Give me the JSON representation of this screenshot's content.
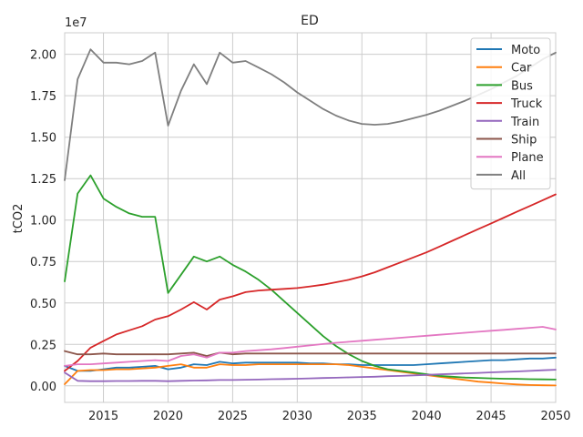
{
  "chart_data": {
    "type": "line",
    "title": "ED",
    "xlabel": "",
    "ylabel": "tCO2",
    "y_offset_label": "1e7",
    "grid": true,
    "legend_position": "top-right",
    "xlim": [
      2012,
      2050
    ],
    "ylim": [
      -0.1,
      2.13
    ],
    "xticks": [
      2015,
      2020,
      2025,
      2030,
      2035,
      2040,
      2045,
      2050
    ],
    "yticks": [
      0.0,
      0.25,
      0.5,
      0.75,
      1.0,
      1.25,
      1.5,
      1.75,
      2.0
    ],
    "ytick_labels": [
      "0.00",
      "0.25",
      "0.50",
      "0.75",
      "1.00",
      "1.25",
      "1.50",
      "1.75",
      "2.00"
    ],
    "x": [
      2012,
      2013,
      2014,
      2015,
      2016,
      2017,
      2018,
      2019,
      2020,
      2021,
      2022,
      2023,
      2024,
      2025,
      2026,
      2027,
      2028,
      2029,
      2030,
      2031,
      2032,
      2033,
      2034,
      2035,
      2036,
      2037,
      2038,
      2039,
      2040,
      2041,
      2042,
      2043,
      2044,
      2045,
      2046,
      2047,
      2048,
      2049,
      2050
    ],
    "series": [
      {
        "name": "Moto",
        "color": "#1f77b4",
        "values": [
          0.12,
          0.09,
          0.09,
          0.1,
          0.11,
          0.11,
          0.115,
          0.12,
          0.1,
          0.11,
          0.13,
          0.125,
          0.145,
          0.135,
          0.14,
          0.14,
          0.14,
          0.14,
          0.14,
          0.135,
          0.135,
          0.13,
          0.13,
          0.125,
          0.125,
          0.125,
          0.125,
          0.125,
          0.13,
          0.135,
          0.14,
          0.145,
          0.15,
          0.155,
          0.155,
          0.16,
          0.165,
          0.165,
          0.17
        ]
      },
      {
        "name": "Car",
        "color": "#ff7f0e",
        "values": [
          0.01,
          0.09,
          0.095,
          0.095,
          0.1,
          0.1,
          0.105,
          0.11,
          0.12,
          0.13,
          0.11,
          0.11,
          0.13,
          0.125,
          0.125,
          0.13,
          0.13,
          0.13,
          0.13,
          0.13,
          0.13,
          0.13,
          0.125,
          0.115,
          0.105,
          0.095,
          0.085,
          0.075,
          0.065,
          0.055,
          0.045,
          0.035,
          0.025,
          0.02,
          0.013,
          0.008,
          0.005,
          0.003,
          0.002
        ]
      },
      {
        "name": "Bus",
        "color": "#2ca02c",
        "values": [
          0.63,
          1.16,
          1.27,
          1.13,
          1.08,
          1.04,
          1.02,
          1.02,
          0.56,
          0.67,
          0.78,
          0.75,
          0.78,
          0.73,
          0.69,
          0.64,
          0.58,
          0.51,
          0.44,
          0.37,
          0.3,
          0.24,
          0.19,
          0.15,
          0.12,
          0.1,
          0.09,
          0.08,
          0.07,
          0.06,
          0.055,
          0.05,
          0.048,
          0.045,
          0.043,
          0.042,
          0.04,
          0.039,
          0.038
        ]
      },
      {
        "name": "Truck",
        "color": "#d62728",
        "values": [
          0.09,
          0.15,
          0.23,
          0.27,
          0.31,
          0.335,
          0.36,
          0.4,
          0.42,
          0.46,
          0.505,
          0.46,
          0.52,
          0.54,
          0.565,
          0.575,
          0.58,
          0.585,
          0.59,
          0.6,
          0.61,
          0.625,
          0.64,
          0.66,
          0.685,
          0.715,
          0.745,
          0.775,
          0.805,
          0.84,
          0.875,
          0.91,
          0.945,
          0.98,
          1.015,
          1.05,
          1.085,
          1.12,
          1.155
        ]
      },
      {
        "name": "Train",
        "color": "#9467bd",
        "values": [
          0.08,
          0.03,
          0.028,
          0.028,
          0.029,
          0.029,
          0.03,
          0.03,
          0.028,
          0.03,
          0.032,
          0.033,
          0.035,
          0.035,
          0.037,
          0.038,
          0.04,
          0.041,
          0.043,
          0.045,
          0.047,
          0.049,
          0.051,
          0.053,
          0.055,
          0.058,
          0.06,
          0.063,
          0.066,
          0.069,
          0.072,
          0.075,
          0.078,
          0.081,
          0.084,
          0.087,
          0.09,
          0.094,
          0.097
        ]
      },
      {
        "name": "Ship",
        "color": "#8c564b",
        "values": [
          0.21,
          0.19,
          0.19,
          0.195,
          0.19,
          0.19,
          0.19,
          0.19,
          0.19,
          0.195,
          0.2,
          0.18,
          0.2,
          0.19,
          0.195,
          0.195,
          0.195,
          0.195,
          0.195,
          0.195,
          0.195,
          0.195,
          0.195,
          0.195,
          0.195,
          0.195,
          0.195,
          0.195,
          0.195,
          0.195,
          0.195,
          0.195,
          0.195,
          0.195,
          0.195,
          0.195,
          0.195,
          0.195,
          0.195
        ]
      },
      {
        "name": "Plane",
        "color": "#e377c2",
        "values": [
          0.12,
          0.13,
          0.13,
          0.135,
          0.14,
          0.145,
          0.15,
          0.155,
          0.15,
          0.18,
          0.19,
          0.17,
          0.2,
          0.2,
          0.21,
          0.215,
          0.22,
          0.228,
          0.236,
          0.244,
          0.252,
          0.26,
          0.266,
          0.272,
          0.278,
          0.284,
          0.29,
          0.296,
          0.302,
          0.308,
          0.314,
          0.32,
          0.326,
          0.332,
          0.338,
          0.344,
          0.35,
          0.356,
          0.34
        ]
      },
      {
        "name": "All",
        "color": "#7f7f7f",
        "values": [
          1.24,
          1.85,
          2.03,
          1.95,
          1.95,
          1.94,
          1.96,
          2.01,
          1.57,
          1.78,
          1.94,
          1.82,
          2.01,
          1.95,
          1.96,
          1.92,
          1.88,
          1.83,
          1.77,
          1.72,
          1.67,
          1.63,
          1.6,
          1.58,
          1.575,
          1.58,
          1.595,
          1.615,
          1.635,
          1.66,
          1.69,
          1.72,
          1.755,
          1.79,
          1.83,
          1.87,
          1.92,
          1.97,
          2.01
        ]
      }
    ]
  }
}
